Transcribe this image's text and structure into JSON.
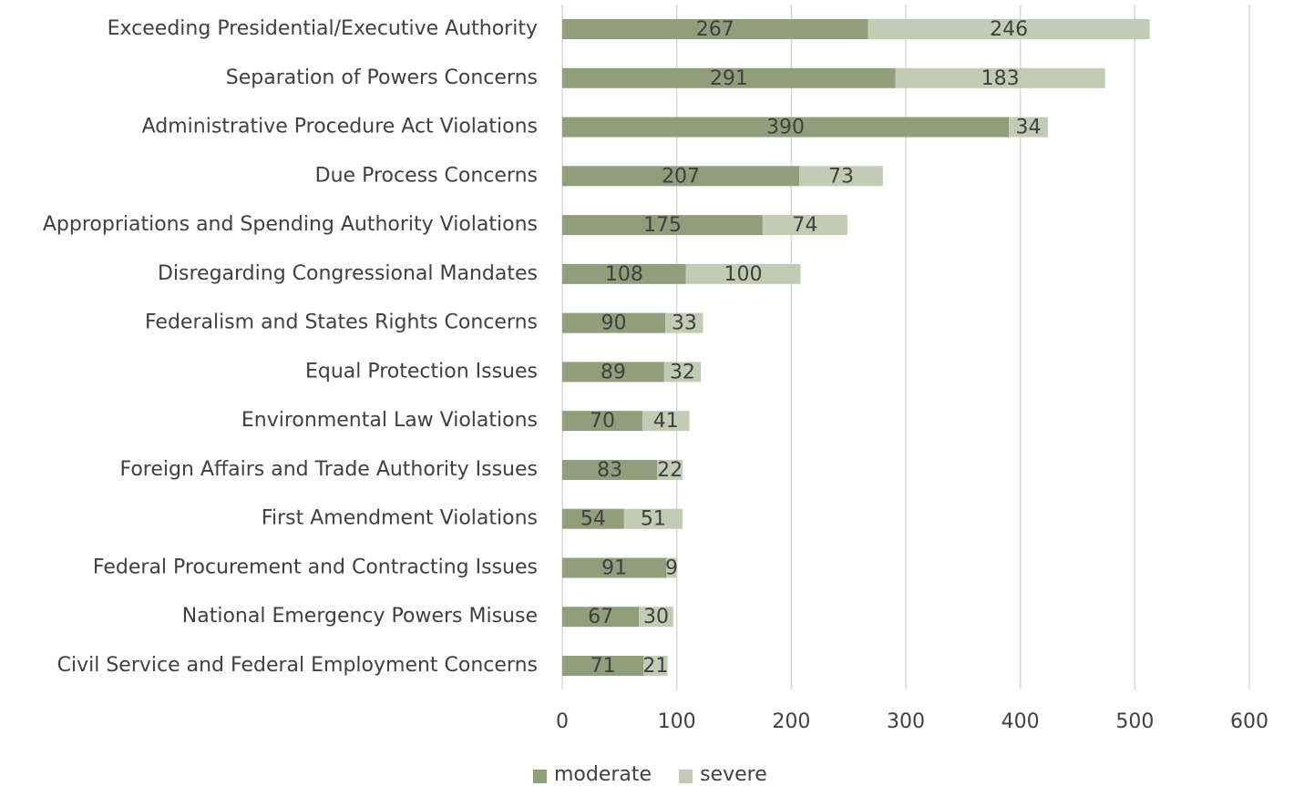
{
  "chart_data": {
    "type": "bar",
    "orientation": "horizontal",
    "stacked": true,
    "categories": [
      "Exceeding Presidential/Executive Authority",
      "Separation of Powers Concerns",
      "Administrative Procedure Act Violations",
      "Due Process Concerns",
      "Appropriations and Spending Authority Violations",
      "Disregarding Congressional Mandates",
      "Federalism and States Rights Concerns",
      "Equal Protection Issues",
      "Environmental Law Violations",
      "Foreign Affairs and Trade Authority Issues",
      "First Amendment Violations",
      "Federal Procurement and Contracting Issues",
      "National Emergency Powers Misuse",
      "Civil Service and Federal Employment Concerns"
    ],
    "series": [
      {
        "name": "moderate",
        "color": "#919e7c",
        "values": [
          267,
          291,
          390,
          207,
          175,
          108,
          90,
          89,
          70,
          83,
          54,
          91,
          67,
          71
        ]
      },
      {
        "name": "severe",
        "color": "#c2cbb3",
        "values": [
          246,
          183,
          34,
          73,
          74,
          100,
          33,
          32,
          41,
          22,
          51,
          9,
          30,
          21
        ]
      }
    ],
    "xlim": [
      0,
      600
    ],
    "xticks": [
      0,
      100,
      200,
      300,
      400,
      500,
      600
    ],
    "grid": true,
    "data_labels": true,
    "legend": "bottom"
  }
}
